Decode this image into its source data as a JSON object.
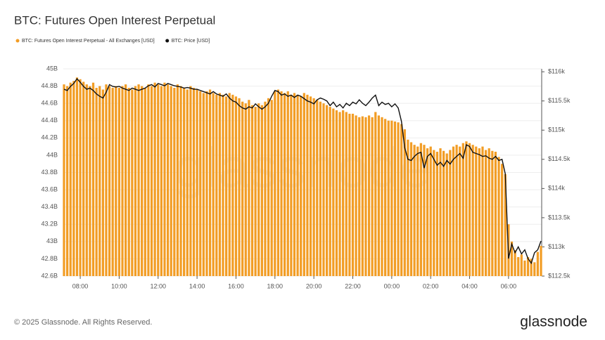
{
  "chart_data": {
    "type": "bar",
    "title": "BTC: Futures Open Interest Perpetual",
    "categories": [
      null,
      null,
      null,
      null,
      null,
      "08:00",
      null,
      null,
      null,
      null,
      null,
      null,
      null,
      null,
      null,
      null,
      null,
      "10:00",
      null,
      null,
      null,
      null,
      null,
      null,
      null,
      null,
      null,
      null,
      null,
      "12:00",
      null,
      null,
      null,
      null,
      null,
      null,
      null,
      null,
      null,
      null,
      null,
      "14:00",
      null,
      null,
      null,
      null,
      null,
      null,
      null,
      null,
      null,
      null,
      null,
      "16:00",
      null,
      null,
      null,
      null,
      null,
      null,
      null,
      null,
      null,
      null,
      null,
      "18:00",
      null,
      null,
      null,
      null,
      null,
      null,
      null,
      null,
      null,
      null,
      null,
      "20:00",
      null,
      null,
      null,
      null,
      null,
      null,
      null,
      null,
      null,
      null,
      null,
      "22:00",
      null,
      null,
      null,
      null,
      null,
      null,
      null,
      null,
      null,
      null,
      null,
      "00:00",
      null,
      null,
      null,
      null,
      null,
      null,
      null,
      null,
      null,
      null,
      null,
      "02:00",
      null,
      null,
      null,
      null,
      null,
      null,
      null,
      null,
      null,
      null,
      null,
      "04:00",
      null,
      null,
      null,
      null,
      null,
      null,
      null,
      null,
      null,
      null,
      null,
      "06:00",
      null,
      null,
      null,
      null,
      null,
      null,
      null,
      null,
      null,
      null
    ],
    "series": [
      {
        "name": "BTC: Futures Open Interest Perpetual - All Exchanges [USD]",
        "color": "#f29d25",
        "type": "bar",
        "values": [
          44.82,
          44.8,
          44.84,
          44.86,
          44.9,
          44.88,
          44.85,
          44.82,
          44.8,
          44.84,
          44.78,
          44.8,
          44.76,
          44.82,
          44.8,
          44.78,
          44.8,
          44.78,
          44.8,
          44.82,
          44.78,
          44.76,
          44.8,
          44.82,
          44.8,
          44.78,
          44.82,
          44.8,
          44.84,
          44.82,
          44.8,
          44.84,
          44.82,
          44.8,
          44.78,
          44.82,
          44.8,
          44.78,
          44.76,
          44.8,
          44.78,
          44.76,
          44.74,
          44.72,
          44.74,
          44.76,
          44.72,
          44.7,
          44.72,
          44.7,
          44.68,
          44.72,
          44.7,
          44.68,
          44.66,
          44.62,
          44.6,
          44.64,
          44.58,
          44.56,
          44.6,
          44.58,
          44.62,
          44.66,
          44.64,
          44.74,
          44.76,
          44.74,
          44.72,
          44.74,
          44.7,
          44.72,
          44.7,
          44.68,
          44.72,
          44.7,
          44.68,
          44.66,
          44.64,
          44.62,
          44.6,
          44.58,
          44.56,
          44.54,
          44.52,
          44.5,
          44.52,
          44.5,
          44.48,
          44.48,
          44.46,
          44.44,
          44.45,
          44.44,
          44.46,
          44.44,
          44.5,
          44.46,
          44.44,
          44.42,
          44.4,
          44.4,
          44.39,
          44.38,
          44.36,
          44.3,
          44.18,
          44.15,
          44.12,
          44.1,
          44.14,
          44.12,
          44.08,
          44.1,
          44.06,
          44.04,
          44.08,
          44.05,
          44.02,
          44.06,
          44.1,
          44.12,
          44.1,
          44.14,
          44.16,
          44.14,
          44.12,
          44.1,
          44.08,
          44.1,
          44.06,
          44.08,
          44.05,
          44.04,
          43.98,
          43.9,
          43.78,
          43.2,
          43.0,
          42.9,
          42.82,
          42.85,
          42.78,
          42.82,
          42.8,
          42.76,
          42.88,
          42.95
        ]
      },
      {
        "name": "BTC: Price [USD]",
        "color": "#111111",
        "type": "line",
        "axis": "y2",
        "values": [
          115.7,
          115.68,
          115.75,
          115.8,
          115.88,
          115.82,
          115.75,
          115.7,
          115.72,
          115.68,
          115.62,
          115.58,
          115.55,
          115.65,
          115.78,
          115.75,
          115.74,
          115.75,
          115.72,
          115.7,
          115.68,
          115.72,
          115.7,
          115.68,
          115.7,
          115.72,
          115.76,
          115.78,
          115.74,
          115.8,
          115.78,
          115.76,
          115.8,
          115.78,
          115.76,
          115.75,
          115.74,
          115.72,
          115.73,
          115.72,
          115.7,
          115.7,
          115.68,
          115.66,
          115.64,
          115.62,
          115.66,
          115.62,
          115.6,
          115.58,
          115.62,
          115.55,
          115.5,
          115.48,
          115.42,
          115.38,
          115.36,
          115.4,
          115.38,
          115.45,
          115.4,
          115.36,
          115.4,
          115.46,
          115.58,
          115.68,
          115.66,
          115.6,
          115.62,
          115.58,
          115.6,
          115.56,
          115.6,
          115.58,
          115.54,
          115.5,
          115.48,
          115.45,
          115.52,
          115.55,
          115.53,
          115.5,
          115.42,
          115.48,
          115.4,
          115.44,
          115.38,
          115.46,
          115.42,
          115.48,
          115.45,
          115.52,
          115.46,
          115.42,
          115.48,
          115.55,
          115.6,
          115.42,
          115.48,
          115.44,
          115.46,
          115.4,
          115.45,
          115.38,
          115.15,
          114.7,
          114.5,
          114.48,
          114.55,
          114.6,
          114.62,
          114.35,
          114.55,
          114.6,
          114.5,
          114.4,
          114.45,
          114.38,
          114.48,
          114.42,
          114.5,
          114.55,
          114.6,
          114.52,
          114.75,
          114.72,
          114.62,
          114.6,
          114.58,
          114.55,
          114.56,
          114.52,
          114.5,
          114.55,
          114.48,
          114.5,
          114.25,
          112.8,
          113.05,
          112.9,
          113.0,
          112.88,
          112.95,
          112.8,
          112.72,
          112.9,
          112.95,
          113.1
        ]
      }
    ],
    "ylim": [
      42.6,
      45
    ],
    "yticks": [
      {
        "value": 42.6,
        "label": "42.6B"
      },
      {
        "value": 42.8,
        "label": "42.8B"
      },
      {
        "value": 43,
        "label": "43B"
      },
      {
        "value": 43.2,
        "label": "43.2B"
      },
      {
        "value": 43.4,
        "label": "43.4B"
      },
      {
        "value": 43.6,
        "label": "43.6B"
      },
      {
        "value": 43.8,
        "label": "43.8B"
      },
      {
        "value": 44,
        "label": "44B"
      },
      {
        "value": 44.2,
        "label": "44.2B"
      },
      {
        "value": 44.4,
        "label": "44.4B"
      },
      {
        "value": 44.6,
        "label": "44.6B"
      },
      {
        "value": 44.8,
        "label": "44.8B"
      },
      {
        "value": 45,
        "label": "45B"
      }
    ],
    "y2lim": [
      112.5,
      116.05
    ],
    "y2ticks": [
      {
        "value": 112.5,
        "label": "$112.5k"
      },
      {
        "value": 113,
        "label": "$113k"
      },
      {
        "value": 113.5,
        "label": "$113.5k"
      },
      {
        "value": 114,
        "label": "$114k"
      },
      {
        "value": 114.5,
        "label": "$114.5k"
      },
      {
        "value": 115,
        "label": "$115k"
      },
      {
        "value": 115.5,
        "label": "$115.5k"
      },
      {
        "value": 116,
        "label": "$116k"
      }
    ],
    "grid": true
  },
  "footer": {
    "copyright": "© 2025 Glassnode. All Rights Reserved.",
    "logo": "glassnode"
  }
}
